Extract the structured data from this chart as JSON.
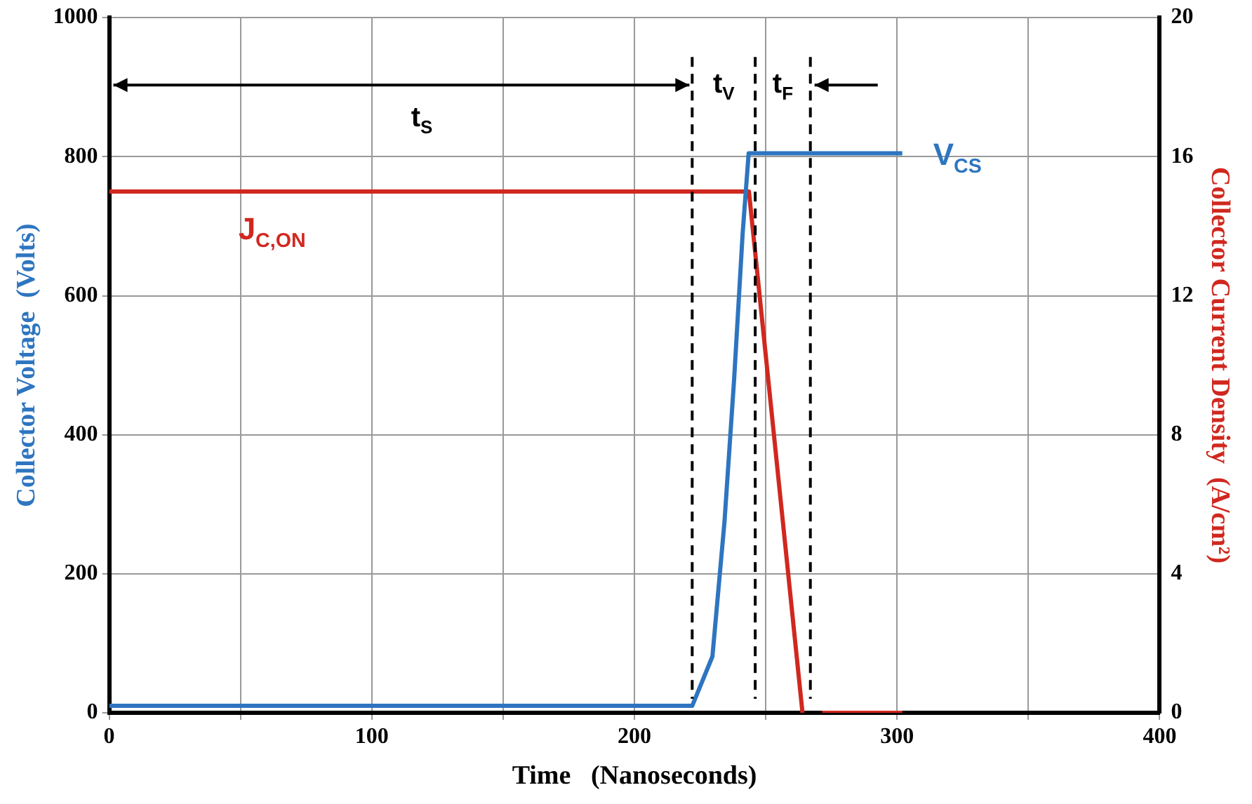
{
  "chart_data": {
    "type": "line",
    "xlabel": "Time   (Nanoseconds)",
    "ylabel": "Collector Voltage  (Volts)",
    "y2label": "Collector Current Density  (A/cm²)",
    "xlim": [
      0,
      400
    ],
    "xticks": [
      0,
      {
        "value": 50,
        "label": null
      },
      100,
      {
        "value": 150,
        "label": null
      },
      200,
      {
        "value": 250,
        "label": null
      },
      300,
      {
        "value": 350,
        "label": null
      },
      400
    ],
    "ylim": [
      0,
      1000
    ],
    "yticks": [
      0,
      200,
      400,
      600,
      800,
      1000
    ],
    "y2lim": [
      0,
      20
    ],
    "y2ticks": [
      0,
      4,
      8,
      12,
      16,
      20
    ],
    "grid": true,
    "legend": false,
    "series": [
      {
        "name": "V$_{CS}$",
        "color": "#2e75c0",
        "x": [
          0,
          222,
          229.7,
          234.3,
          238,
          241.2,
          243.5,
          245,
          302
        ],
        "values": [
          10,
          10,
          81,
          275,
          482,
          689,
          805,
          805,
          805
        ]
      },
      {
        "name": "J$_{C,ON}$",
        "color": "#d0281f",
        "axis": "y2",
        "x": [
          0,
          243.6,
          264,
          268,
          271.5,
          302
        ],
        "values": [
          15,
          15,
          0,
          null,
          0,
          0
        ]
      }
    ],
    "ref_lines": [
      {
        "axis": "x",
        "value": 222,
        "color": "#000000",
        "line_style": "dashed"
      },
      {
        "axis": "x",
        "value": 246,
        "color": "#000000",
        "line_style": "dashed"
      },
      {
        "axis": "x",
        "value": 267,
        "color": "#000000",
        "line_style": "dashed"
      }
    ],
    "annotations": [
      "t$_{S}$",
      "t$_{V}$",
      "t$_{F}$"
    ]
  }
}
